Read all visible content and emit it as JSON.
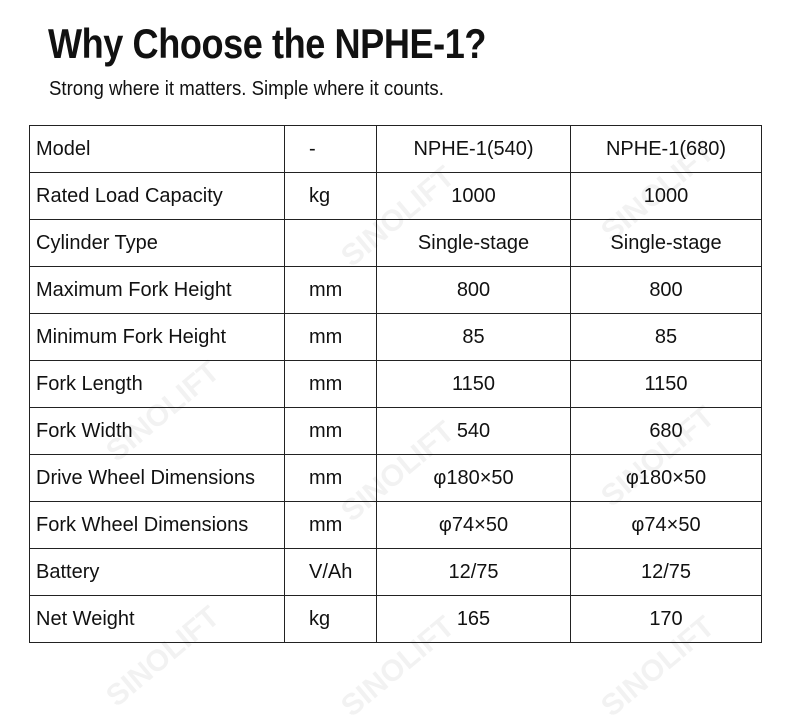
{
  "header": {
    "title": "Why Choose the NPHE-1?",
    "subtitle": "Strong where it matters. Simple where it counts."
  },
  "watermark": "SINOLIFT",
  "table": {
    "rows": [
      [
        "Model",
        "-",
        "NPHE-1(540)",
        "NPHE-1(680)"
      ],
      [
        "Rated Load Capacity",
        "kg",
        "1000",
        "1000"
      ],
      [
        "Cylinder Type",
        null,
        "Single-stage",
        "Single-stage"
      ],
      [
        "Maximum Fork Height",
        "mm",
        "800",
        "800"
      ],
      [
        "Minimum Fork Height",
        "mm",
        "85",
        "85"
      ],
      [
        "Fork Length",
        "mm",
        "1150",
        "1150"
      ],
      [
        "Fork Width",
        "mm",
        "540",
        "680"
      ],
      [
        "Drive Wheel Dimensions",
        "mm",
        "φ180×50",
        "φ180×50"
      ],
      [
        "Fork Wheel Dimensions",
        "mm",
        "φ74×50",
        "φ74×50"
      ],
      [
        "Battery",
        "V/Ah",
        "12/75",
        "12/75"
      ],
      [
        "Net Weight",
        "kg",
        "165",
        "170"
      ]
    ]
  }
}
